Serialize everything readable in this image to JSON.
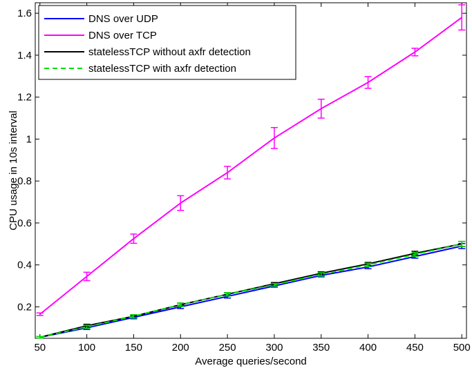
{
  "chart_data": {
    "type": "line",
    "title": "",
    "xlabel": "Average queries/second",
    "ylabel": "CPU usage in 10s interval",
    "x": [
      50,
      100,
      150,
      200,
      250,
      300,
      350,
      400,
      450,
      500
    ],
    "xlim": [
      45,
      505
    ],
    "ylim": [
      0.05,
      1.65
    ],
    "xticks": [
      "50",
      "100",
      "150",
      "200",
      "250",
      "300",
      "350",
      "400",
      "450",
      "500"
    ],
    "xtick_values": [
      50,
      100,
      150,
      200,
      250,
      300,
      350,
      400,
      450,
      500
    ],
    "yticks": [
      "0.2",
      "0.4",
      "0.6",
      "0.8",
      "1",
      "1.2",
      "1.4",
      "1.6"
    ],
    "ytick_values": [
      0.2,
      0.4,
      0.6,
      0.8,
      1.0,
      1.2,
      1.4,
      1.6
    ],
    "grid": false,
    "legend_position": "top-left",
    "error_bars": true,
    "series": [
      {
        "name": "DNS over UDP",
        "color": "#0000ff",
        "dash": "solid",
        "values": [
          0.055,
          0.1,
          0.15,
          0.2,
          0.25,
          0.3,
          0.35,
          0.39,
          0.44,
          0.49
        ],
        "errors": [
          0.004,
          0.008,
          0.007,
          0.008,
          0.008,
          0.006,
          0.007,
          0.008,
          0.008,
          0.012
        ]
      },
      {
        "name": "DNS over TCP",
        "color": "#ff00ff",
        "dash": "solid",
        "values": [
          0.165,
          0.345,
          0.525,
          0.695,
          0.84,
          1.005,
          1.145,
          1.27,
          1.415,
          1.58
        ],
        "errors": [
          0.006,
          0.02,
          0.022,
          0.035,
          0.03,
          0.05,
          0.045,
          0.028,
          0.018,
          0.06
        ]
      },
      {
        "name": "statelessTCP without axfr detection",
        "color": "#000000",
        "dash": "solid",
        "values": [
          0.055,
          0.11,
          0.155,
          0.21,
          0.26,
          0.31,
          0.36,
          0.405,
          0.455,
          0.5
        ],
        "errors": [
          0.004,
          0.007,
          0.007,
          0.008,
          0.007,
          0.006,
          0.007,
          0.007,
          0.01,
          0.012
        ]
      },
      {
        "name": "statelessTCP with axfr detection",
        "color": "#00dd00",
        "dash": "dashed",
        "values": [
          0.055,
          0.105,
          0.155,
          0.21,
          0.26,
          0.305,
          0.355,
          0.4,
          0.45,
          0.5
        ],
        "errors": [
          0.004,
          0.007,
          0.008,
          0.008,
          0.008,
          0.006,
          0.008,
          0.008,
          0.009,
          0.012
        ]
      }
    ]
  }
}
